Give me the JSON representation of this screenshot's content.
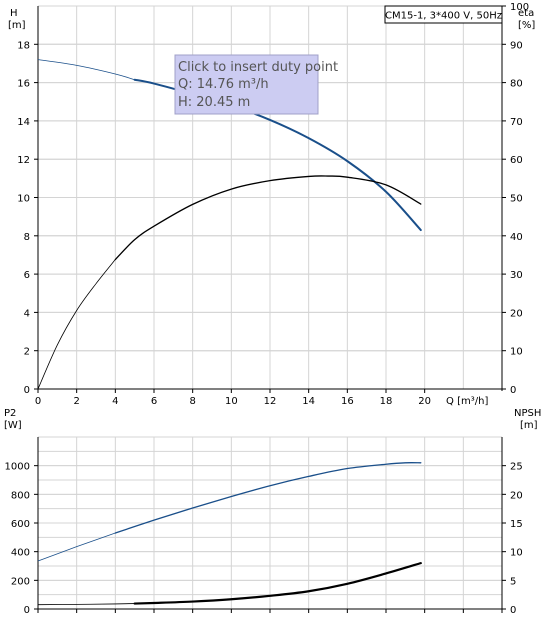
{
  "ui": {
    "badge": "CM15-1, 3*400 V, 50Hz",
    "tooltip": {
      "line1": "Click to insert duty point",
      "line2": "Q: 14.76 m³/h",
      "line3": "H: 20.45 m"
    }
  },
  "colors": {
    "grid": "#d4d4d4",
    "axis": "#000000",
    "head_curve": "#1a4f8a",
    "eta_curve": "#000000",
    "p2_curve": "#1a4f8a",
    "npsh_curve": "#000000",
    "tooltip_bg": "#ccccf2",
    "tooltip_border": "#a0a0c8"
  },
  "chart_data": [
    {
      "type": "line",
      "name": "head-efficiency",
      "y_left_title_1": "H",
      "y_left_title_2": "[m]",
      "y_right_title_1": "eta",
      "y_right_title_2": "[%]",
      "x_title": "Q [m³/h]",
      "xlim": [
        0,
        24
      ],
      "x_ticks": [
        0,
        2,
        4,
        6,
        8,
        10,
        12,
        14,
        16,
        18,
        20
      ],
      "ylim_left": [
        0,
        20
      ],
      "y_left_ticks": [
        0,
        2,
        4,
        6,
        8,
        10,
        12,
        14,
        16,
        18
      ],
      "ylim_right": [
        0,
        100
      ],
      "y_right_ticks": [
        0,
        10,
        20,
        30,
        40,
        50,
        60,
        70,
        80,
        90,
        100
      ],
      "grid": true,
      "series": [
        {
          "key": "H",
          "axis": "left",
          "x": [
            0,
            2,
            4,
            5,
            6,
            8,
            10,
            12,
            14,
            16,
            18,
            19.8
          ],
          "y": [
            17.2,
            16.9,
            16.45,
            16.15,
            15.95,
            15.4,
            14.8,
            14.05,
            13.1,
            11.9,
            10.3,
            8.3
          ]
        },
        {
          "key": "eta",
          "axis": "right",
          "x": [
            0,
            1,
            2,
            3,
            4,
            5,
            6,
            8,
            10,
            12,
            14,
            15,
            16,
            18,
            19.8
          ],
          "y": [
            0,
            11.5,
            20.5,
            27.5,
            33.8,
            39,
            42.5,
            48.2,
            52.2,
            54.4,
            55.5,
            55.6,
            55.3,
            53.3,
            48.3
          ]
        }
      ]
    },
    {
      "type": "line",
      "name": "power-npsh",
      "y_left_title_1": "P2",
      "y_left_title_2": "[W]",
      "y_right_title_1": "NPSH",
      "y_right_title_2": "[m]",
      "xlim": [
        0,
        24
      ],
      "ylim_left": [
        0,
        1200
      ],
      "y_left_ticks": [
        0,
        200,
        400,
        600,
        800,
        1000
      ],
      "ylim_right": [
        0,
        30
      ],
      "y_right_ticks": [
        0,
        5,
        10,
        15,
        20,
        25
      ],
      "grid": true,
      "series": [
        {
          "key": "P2",
          "axis": "left",
          "x": [
            0,
            2,
            4,
            6,
            8,
            10,
            12,
            14,
            16,
            18,
            19,
            19.8
          ],
          "y": [
            335,
            435,
            530,
            620,
            705,
            785,
            860,
            925,
            980,
            1010,
            1020,
            1020
          ]
        },
        {
          "key": "NPSH",
          "axis": "right",
          "x": [
            0,
            2,
            4,
            5,
            6,
            8,
            10,
            12,
            14,
            16,
            18,
            19.8
          ],
          "y": [
            0.75,
            0.8,
            0.88,
            0.95,
            1.05,
            1.3,
            1.7,
            2.3,
            3.1,
            4.4,
            6.2,
            8.0
          ]
        }
      ]
    }
  ]
}
